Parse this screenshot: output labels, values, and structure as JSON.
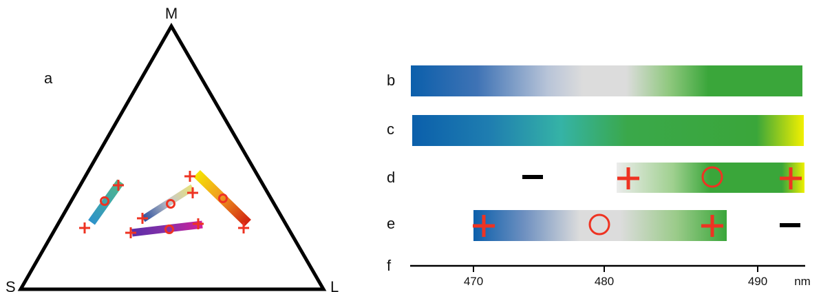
{
  "triangle": {
    "vertex_labels": {
      "top": "M",
      "left": "S",
      "right": "L"
    },
    "panel_label": "a"
  },
  "rows": [
    {
      "label": "b",
      "bar_colors": [
        "#0b5fab",
        "#5f86bd",
        "#dcdcdc",
        "#dcdcdc",
        "#8fc87e",
        "#3aa63a",
        "#3aa63a"
      ]
    },
    {
      "label": "c",
      "bar_colors": [
        "#0b5fab",
        "#2a8aae",
        "#35b3a6",
        "#3aa84a",
        "#3aa63a",
        "#e8ee00"
      ]
    },
    {
      "label": "d",
      "markers": [
        "−",
        "+",
        "○",
        "+"
      ]
    },
    {
      "label": "e",
      "markers": [
        "+",
        "○",
        "+",
        "−"
      ]
    },
    {
      "label": "f"
    }
  ],
  "axis": {
    "ticks": [
      "470",
      "480",
      "490"
    ],
    "unit": "nm"
  },
  "colors": {
    "marker": "#ee3322",
    "outline": "#000000"
  }
}
